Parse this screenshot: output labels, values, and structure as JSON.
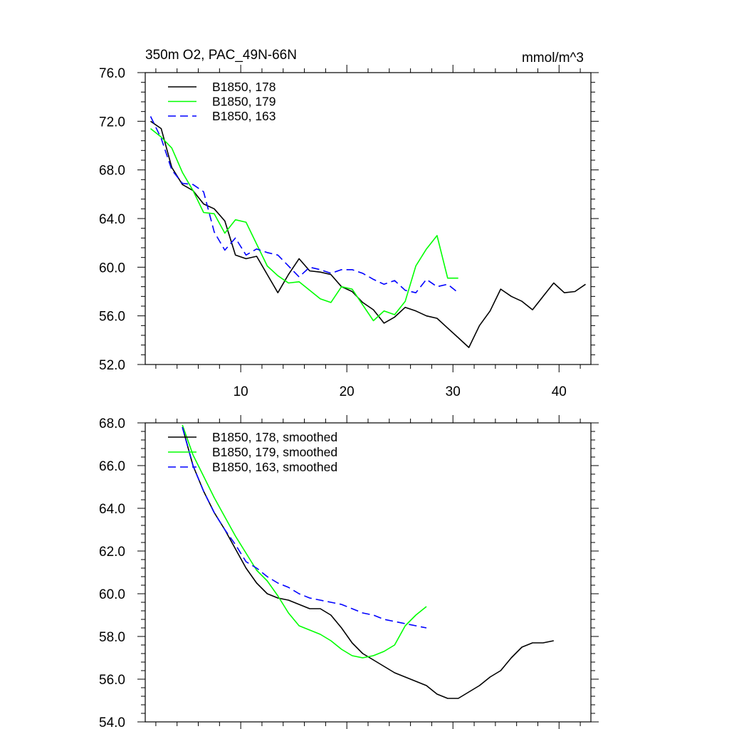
{
  "chart_data": [
    {
      "type": "line",
      "title": "350m O2, PAC_49N-66N",
      "units": "mmol/m^3",
      "xlim": [
        1,
        43
      ],
      "ylim": [
        52,
        76
      ],
      "xticks": [
        10,
        20,
        30,
        40
      ],
      "xtick_labels": [
        "10",
        "20",
        "30",
        "40"
      ],
      "yticks": [
        52,
        56,
        60,
        64,
        68,
        72,
        76
      ],
      "ytick_labels": [
        "52.0",
        "56.0",
        "60.0",
        "64.0",
        "68.0",
        "72.0",
        "76.0"
      ],
      "legend_location": "top-left",
      "series": [
        {
          "name": "B1850, 178",
          "color": "#000000",
          "dash": "solid",
          "x": [
            1.5,
            2.5,
            3.5,
            4.5,
            5.5,
            6.5,
            7.5,
            8.5,
            9.5,
            10.5,
            11.5,
            12.5,
            13.5,
            14.5,
            15.5,
            16.5,
            17.5,
            18.5,
            19.5,
            20.5,
            21.5,
            22.5,
            23.5,
            24.5,
            25.5,
            26.5,
            27.5,
            28.5,
            29.5,
            30.5,
            31.5,
            32.5,
            33.5,
            34.5,
            35.5,
            36.5,
            37.5,
            38.5,
            39.5,
            40.5,
            41.5,
            42.5
          ],
          "y": [
            72.0,
            71.4,
            68.2,
            66.8,
            66.3,
            65.2,
            64.8,
            63.8,
            61.0,
            60.7,
            60.9,
            59.4,
            57.9,
            59.4,
            60.7,
            59.7,
            59.6,
            59.4,
            58.4,
            58.0,
            57.1,
            56.5,
            55.4,
            55.9,
            56.7,
            56.4,
            56.0,
            55.8,
            55.0,
            54.2,
            53.4,
            55.2,
            56.4,
            58.2,
            57.6,
            57.2,
            56.5,
            57.6,
            58.7,
            57.9,
            58.0,
            58.6
          ]
        },
        {
          "name": "B1850, 179",
          "color": "#00ff00",
          "dash": "solid",
          "x": [
            1.5,
            2.5,
            3.5,
            4.5,
            5.5,
            6.5,
            7.5,
            8.5,
            9.5,
            10.5,
            11.5,
            12.5,
            13.5,
            14.5,
            15.5,
            16.5,
            17.5,
            18.5,
            19.5,
            20.5,
            21.5,
            22.5,
            23.5,
            24.5,
            25.5,
            26.5,
            27.5,
            28.5,
            29.5,
            30.5
          ],
          "y": [
            71.4,
            70.7,
            69.8,
            67.8,
            66.3,
            64.5,
            64.4,
            62.8,
            63.9,
            63.7,
            61.9,
            60.1,
            59.3,
            58.7,
            58.8,
            58.1,
            57.4,
            57.1,
            58.4,
            58.2,
            56.9,
            55.6,
            56.4,
            56.1,
            57.2,
            60.1,
            61.5,
            62.6,
            59.1,
            59.1
          ]
        },
        {
          "name": "B1850, 163",
          "color": "#0000ff",
          "dash": "dashed",
          "x": [
            1.5,
            2.5,
            3.5,
            4.5,
            5.5,
            6.5,
            7.5,
            8.5,
            9.5,
            10.5,
            11.5,
            12.5,
            13.5,
            14.5,
            15.5,
            16.5,
            17.5,
            18.5,
            19.5,
            20.5,
            21.5,
            22.5,
            23.5,
            24.5,
            25.5,
            26.5,
            27.5,
            28.5,
            29.5,
            30.5
          ],
          "y": [
            72.4,
            70.6,
            68.0,
            66.9,
            66.8,
            66.2,
            62.9,
            61.4,
            62.4,
            61.0,
            61.5,
            61.2,
            61.0,
            60.1,
            59.2,
            60.0,
            59.8,
            59.5,
            59.8,
            59.8,
            59.5,
            59.0,
            58.6,
            58.9,
            58.1,
            57.9,
            59.0,
            58.4,
            58.6,
            57.9
          ]
        }
      ]
    },
    {
      "type": "line",
      "title": "",
      "xlim": [
        1,
        43
      ],
      "ylim": [
        54,
        68
      ],
      "xticks": [
        10,
        20,
        30,
        40
      ],
      "yticks": [
        54,
        56,
        58,
        60,
        62,
        64,
        66,
        68
      ],
      "ytick_labels": [
        "54.0",
        "56.0",
        "58.0",
        "60.0",
        "62.0",
        "64.0",
        "66.0",
        "68.0"
      ],
      "legend_location": "top-left",
      "series": [
        {
          "name": "B1850, 178, smoothed",
          "color": "#000000",
          "dash": "solid",
          "x": [
            4.5,
            5.5,
            6.5,
            7.5,
            8.5,
            9.5,
            10.5,
            11.5,
            12.5,
            13.5,
            14.5,
            15.5,
            16.5,
            17.5,
            18.5,
            19.5,
            20.5,
            21.5,
            22.5,
            23.5,
            24.5,
            25.5,
            26.5,
            27.5,
            28.5,
            29.5,
            30.5,
            31.5,
            32.5,
            33.5,
            34.5,
            35.5,
            36.5,
            37.5,
            38.5,
            39.5
          ],
          "y": [
            67.8,
            66.0,
            64.8,
            63.8,
            63.0,
            62.1,
            61.2,
            60.5,
            60.0,
            59.8,
            59.7,
            59.5,
            59.3,
            59.3,
            59.0,
            58.4,
            57.7,
            57.2,
            56.9,
            56.6,
            56.3,
            56.1,
            55.9,
            55.7,
            55.3,
            55.1,
            55.1,
            55.4,
            55.7,
            56.1,
            56.4,
            57.0,
            57.5,
            57.7,
            57.7,
            57.8
          ]
        },
        {
          "name": "B1850, 179, smoothed",
          "color": "#00ff00",
          "dash": "solid",
          "x": [
            4.5,
            5.5,
            6.5,
            7.5,
            8.5,
            9.5,
            10.5,
            11.5,
            12.5,
            13.5,
            14.5,
            15.5,
            16.5,
            17.5,
            18.5,
            19.5,
            20.5,
            21.5,
            22.5,
            23.5,
            24.5,
            25.5,
            26.5,
            27.5
          ],
          "y": [
            67.9,
            66.5,
            65.5,
            64.5,
            63.6,
            62.7,
            61.9,
            61.1,
            60.6,
            59.9,
            59.1,
            58.5,
            58.3,
            58.1,
            57.8,
            57.4,
            57.1,
            57.0,
            57.1,
            57.3,
            57.6,
            58.5,
            59.0,
            59.4
          ]
        },
        {
          "name": "B1850, 163, smoothed",
          "color": "#0000ff",
          "dash": "dashed",
          "x": [
            4.5,
            5.5,
            6.5,
            7.5,
            8.5,
            9.5,
            10.5,
            11.5,
            12.5,
            13.5,
            14.5,
            15.5,
            16.5,
            17.5,
            18.5,
            19.5,
            20.5,
            21.5,
            22.5,
            23.5,
            24.5,
            25.5,
            26.5,
            27.5
          ],
          "y": [
            67.8,
            66.0,
            64.8,
            63.8,
            63.0,
            62.3,
            61.5,
            61.2,
            60.8,
            60.5,
            60.3,
            60.0,
            59.8,
            59.7,
            59.6,
            59.5,
            59.3,
            59.1,
            59.0,
            58.8,
            58.7,
            58.6,
            58.5,
            58.4
          ]
        }
      ]
    }
  ]
}
